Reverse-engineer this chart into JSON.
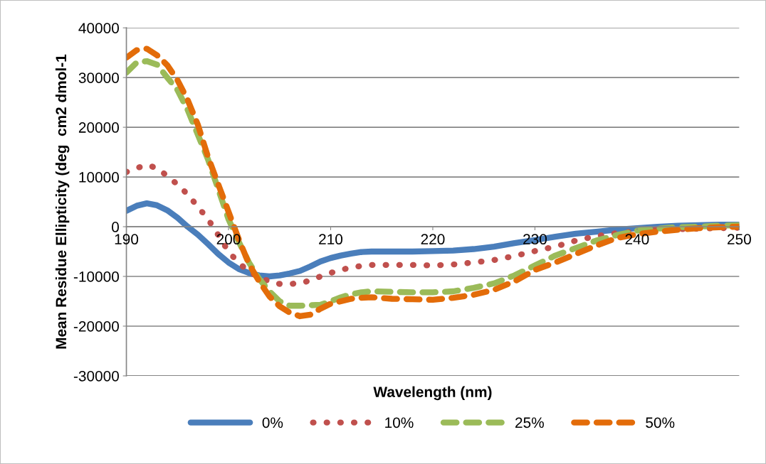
{
  "chart_data": {
    "type": "line",
    "xlabel": "Wavelength (nm)",
    "ylabel": "Mean Residue Ellipticity (deg  cm2 dmol-1",
    "x": [
      190,
      191,
      192,
      193,
      194,
      195,
      196,
      197,
      198,
      199,
      200,
      201,
      202,
      203,
      204,
      205,
      206,
      207,
      208,
      209,
      210,
      211,
      212,
      213,
      214,
      216,
      218,
      220,
      222,
      224,
      226,
      228,
      230,
      232,
      234,
      236,
      238,
      240,
      242,
      244,
      246,
      248,
      250
    ],
    "series": [
      {
        "name": "0%",
        "color": "#4a7ebb",
        "line_style": "solid",
        "values": [
          3200,
          4200,
          4700,
          4300,
          3300,
          1800,
          0,
          -1600,
          -3500,
          -5500,
          -7200,
          -8500,
          -9300,
          -9800,
          -10000,
          -9800,
          -9400,
          -8900,
          -8000,
          -7000,
          -6300,
          -5800,
          -5400,
          -5100,
          -5000,
          -5000,
          -5000,
          -4900,
          -4800,
          -4500,
          -4000,
          -3300,
          -2700,
          -2000,
          -1400,
          -1000,
          -600,
          -300,
          0,
          200,
          300,
          400,
          400
        ]
      },
      {
        "name": "10%",
        "color": "#c0504d",
        "line_style": "dotted",
        "values": [
          11000,
          11800,
          12400,
          11800,
          10200,
          8500,
          6500,
          4000,
          1500,
          -1700,
          -5000,
          -7300,
          -9000,
          -10200,
          -11000,
          -11500,
          -11500,
          -11400,
          -10800,
          -10000,
          -9300,
          -8700,
          -8200,
          -7900,
          -7700,
          -7700,
          -7700,
          -7800,
          -7600,
          -7200,
          -6700,
          -5900,
          -4900,
          -4000,
          -2800,
          -1900,
          -1300,
          -900,
          -600,
          -500,
          -400,
          -300,
          -200
        ]
      },
      {
        "name": "25%",
        "color": "#9bbb59",
        "line_style": "dashed",
        "values": [
          31000,
          33000,
          33300,
          32600,
          30000,
          27500,
          23500,
          18500,
          13500,
          7500,
          1500,
          -3000,
          -7200,
          -10500,
          -13000,
          -15000,
          -15900,
          -15900,
          -15800,
          -15700,
          -15000,
          -14200,
          -13600,
          -13200,
          -13000,
          -13100,
          -13200,
          -13200,
          -13000,
          -12300,
          -11400,
          -9800,
          -7800,
          -5800,
          -4300,
          -2800,
          -1700,
          -800,
          -400,
          -100,
          0,
          200,
          300
        ]
      },
      {
        "name": "50%",
        "color": "#e36c09",
        "line_style": "dashed",
        "values": [
          34000,
          35500,
          35800,
          34500,
          32500,
          29500,
          25500,
          20500,
          14000,
          8500,
          3000,
          -2500,
          -7500,
          -11000,
          -14000,
          -16000,
          -17300,
          -18000,
          -17700,
          -16500,
          -15500,
          -15000,
          -14500,
          -14300,
          -14200,
          -14500,
          -14600,
          -14700,
          -14300,
          -13700,
          -12700,
          -11000,
          -8700,
          -7200,
          -5500,
          -3800,
          -2300,
          -1500,
          -1000,
          -600,
          -300,
          -100,
          0
        ]
      }
    ],
    "xlim": [
      190,
      250
    ],
    "xticks": [
      190,
      200,
      210,
      220,
      230,
      240,
      250
    ],
    "ylim": [
      -30000,
      40000
    ],
    "yticks": [
      -30000,
      -20000,
      -10000,
      0,
      10000,
      20000,
      30000,
      40000
    ],
    "grid": "y",
    "legend": "bottom",
    "marker": "none"
  }
}
